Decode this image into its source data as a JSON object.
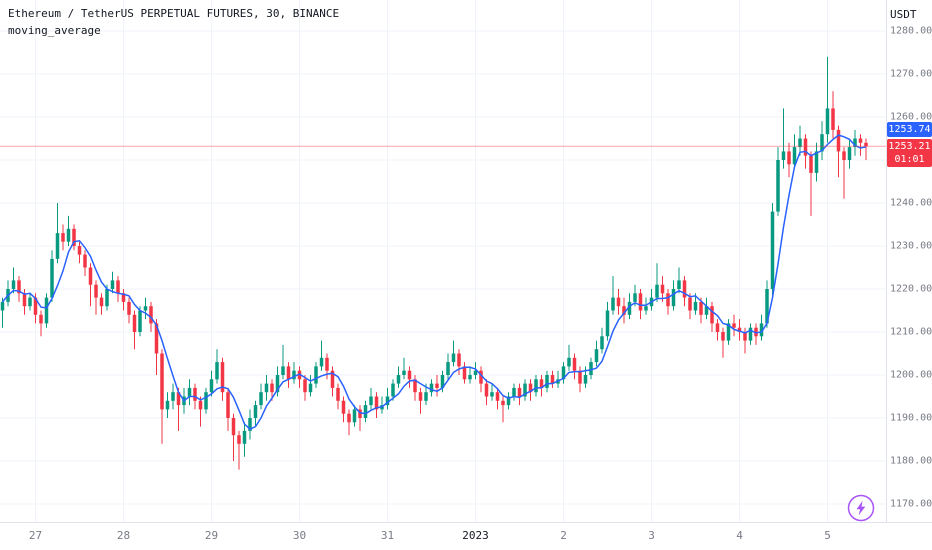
{
  "header": {
    "symbol_title": "Ethereum / TetherUS PERPETUAL FUTURES, 30, BINANCE",
    "indicator_label": "moving_average"
  },
  "price_axis": {
    "currency_label": "USDT",
    "ticks": [
      {
        "value": 1280,
        "label": "1280.00"
      },
      {
        "value": 1270,
        "label": "1270.00"
      },
      {
        "value": 1260,
        "label": "1260.00"
      },
      {
        "value": 1250,
        "label": "1250.00"
      },
      {
        "value": 1240,
        "label": "1240.00"
      },
      {
        "value": 1230,
        "label": "1230.00"
      },
      {
        "value": 1220,
        "label": "1220.00"
      },
      {
        "value": 1210,
        "label": "1210.00"
      },
      {
        "value": 1200,
        "label": "1200.00"
      },
      {
        "value": 1190,
        "label": "1190.00"
      },
      {
        "value": 1180,
        "label": "1180.00"
      },
      {
        "value": 1170,
        "label": "1170.00"
      }
    ]
  },
  "time_axis": {
    "ticks": [
      {
        "label": "27",
        "candle_index": 6
      },
      {
        "label": "28",
        "candle_index": 22
      },
      {
        "label": "29",
        "candle_index": 38
      },
      {
        "label": "30",
        "candle_index": 54
      },
      {
        "label": "31",
        "candle_index": 70
      },
      {
        "label": "2023",
        "candle_index": 86,
        "major": true
      },
      {
        "label": "2",
        "candle_index": 102
      },
      {
        "label": "3",
        "candle_index": 118
      },
      {
        "label": "4",
        "candle_index": 134
      },
      {
        "label": "5",
        "candle_index": 150
      }
    ]
  },
  "price_labels": {
    "ma_value": "1253.74",
    "last_value": "1253.21",
    "countdown": "01:01"
  },
  "colors": {
    "up": "#089981",
    "down": "#f23645",
    "ma_line": "#2962ff",
    "ma_badge": "#2962ff",
    "last_badge": "#f23645",
    "grid": "#f0f3fa",
    "axis_text": "#787b86",
    "title_text": "#131722",
    "boost": "#a855f7"
  },
  "chart_data": {
    "type": "candlestick",
    "title": "Ethereum / TetherUS PERPETUAL FUTURES, 30, BINANCE",
    "exchange": "BINANCE",
    "interval": "30",
    "overlay": "moving_average",
    "ylim": [
      1167,
      1283
    ],
    "x_labels": [
      "27",
      "28",
      "29",
      "30",
      "31",
      "2023",
      "2",
      "3",
      "4",
      "5"
    ],
    "last_price": 1253.21,
    "ma_value": 1253.74,
    "candles": [
      [
        1215,
        1218,
        1211,
        1217
      ],
      [
        1217,
        1222,
        1216,
        1220
      ],
      [
        1220,
        1225,
        1219,
        1222
      ],
      [
        1222,
        1223,
        1217,
        1219
      ],
      [
        1219,
        1220,
        1214,
        1216
      ],
      [
        1216,
        1219,
        1215,
        1218
      ],
      [
        1218,
        1219,
        1212,
        1214
      ],
      [
        1214,
        1215,
        1209,
        1212
      ],
      [
        1212,
        1219,
        1211,
        1218
      ],
      [
        1218,
        1229,
        1217,
        1227
      ],
      [
        1227,
        1240,
        1226,
        1233
      ],
      [
        1233,
        1235,
        1229,
        1231
      ],
      [
        1231,
        1237,
        1230,
        1234
      ],
      [
        1234,
        1235,
        1229,
        1230
      ],
      [
        1230,
        1231,
        1226,
        1228
      ],
      [
        1228,
        1229,
        1223,
        1225
      ],
      [
        1225,
        1226,
        1216,
        1221
      ],
      [
        1221,
        1222,
        1214,
        1218
      ],
      [
        1218,
        1219,
        1214,
        1216
      ],
      [
        1216,
        1221,
        1215,
        1220
      ],
      [
        1220,
        1224,
        1219,
        1222
      ],
      [
        1222,
        1223,
        1217,
        1219
      ],
      [
        1219,
        1220,
        1215,
        1217
      ],
      [
        1217,
        1218,
        1212,
        1214
      ],
      [
        1214,
        1215,
        1206,
        1210
      ],
      [
        1210,
        1216,
        1209,
        1215
      ],
      [
        1215,
        1218,
        1213,
        1216
      ],
      [
        1216,
        1217,
        1210,
        1212
      ],
      [
        1212,
        1213,
        1200,
        1205
      ],
      [
        1205,
        1206,
        1184,
        1192
      ],
      [
        1192,
        1196,
        1190,
        1194
      ],
      [
        1194,
        1198,
        1192,
        1196
      ],
      [
        1196,
        1197,
        1187,
        1193
      ],
      [
        1193,
        1197,
        1191,
        1195
      ],
      [
        1195,
        1199,
        1193,
        1197
      ],
      [
        1197,
        1198,
        1192,
        1194
      ],
      [
        1194,
        1195,
        1188,
        1192
      ],
      [
        1192,
        1197,
        1191,
        1196
      ],
      [
        1196,
        1201,
        1195,
        1199
      ],
      [
        1199,
        1206,
        1198,
        1203
      ],
      [
        1203,
        1204,
        1194,
        1196
      ],
      [
        1196,
        1197,
        1187,
        1190
      ],
      [
        1190,
        1191,
        1180,
        1186
      ],
      [
        1186,
        1187,
        1178,
        1184
      ],
      [
        1184,
        1189,
        1181,
        1187
      ],
      [
        1187,
        1192,
        1185,
        1190
      ],
      [
        1190,
        1194,
        1188,
        1193
      ],
      [
        1193,
        1198,
        1192,
        1196
      ],
      [
        1196,
        1200,
        1194,
        1198
      ],
      [
        1198,
        1199,
        1194,
        1196
      ],
      [
        1196,
        1202,
        1195,
        1200
      ],
      [
        1200,
        1207,
        1199,
        1202
      ],
      [
        1202,
        1203,
        1197,
        1199
      ],
      [
        1199,
        1203,
        1198,
        1201
      ],
      [
        1201,
        1202,
        1197,
        1199
      ],
      [
        1199,
        1200,
        1194,
        1196
      ],
      [
        1196,
        1200,
        1195,
        1198
      ],
      [
        1198,
        1203,
        1197,
        1202
      ],
      [
        1202,
        1208,
        1201,
        1204
      ],
      [
        1204,
        1205,
        1199,
        1201
      ],
      [
        1201,
        1202,
        1195,
        1197
      ],
      [
        1197,
        1198,
        1192,
        1194
      ],
      [
        1194,
        1195,
        1189,
        1191
      ],
      [
        1191,
        1192,
        1186,
        1189
      ],
      [
        1189,
        1193,
        1188,
        1192
      ],
      [
        1192,
        1193,
        1187,
        1190
      ],
      [
        1190,
        1194,
        1189,
        1193
      ],
      [
        1193,
        1197,
        1192,
        1195
      ],
      [
        1195,
        1196,
        1190,
        1192
      ],
      [
        1192,
        1195,
        1191,
        1193
      ],
      [
        1193,
        1197,
        1192,
        1195
      ],
      [
        1195,
        1199,
        1194,
        1198
      ],
      [
        1198,
        1202,
        1197,
        1200
      ],
      [
        1200,
        1204,
        1199,
        1201
      ],
      [
        1201,
        1202,
        1197,
        1199
      ],
      [
        1199,
        1200,
        1194,
        1196
      ],
      [
        1196,
        1197,
        1191,
        1194
      ],
      [
        1194,
        1198,
        1193,
        1196
      ],
      [
        1196,
        1199,
        1195,
        1198
      ],
      [
        1198,
        1200,
        1195,
        1197
      ],
      [
        1197,
        1201,
        1196,
        1200
      ],
      [
        1200,
        1205,
        1199,
        1203
      ],
      [
        1203,
        1208,
        1202,
        1205
      ],
      [
        1205,
        1206,
        1200,
        1202
      ],
      [
        1202,
        1203,
        1198,
        1199
      ],
      [
        1199,
        1202,
        1198,
        1200
      ],
      [
        1200,
        1203,
        1199,
        1201
      ],
      [
        1201,
        1202,
        1196,
        1198
      ],
      [
        1198,
        1199,
        1193,
        1195
      ],
      [
        1195,
        1198,
        1194,
        1196
      ],
      [
        1196,
        1197,
        1192,
        1194
      ],
      [
        1194,
        1195,
        1189,
        1193
      ],
      [
        1193,
        1196,
        1192,
        1195
      ],
      [
        1195,
        1198,
        1194,
        1197
      ],
      [
        1197,
        1198,
        1193,
        1195
      ],
      [
        1195,
        1199,
        1194,
        1198
      ],
      [
        1198,
        1199,
        1194,
        1196
      ],
      [
        1196,
        1200,
        1195,
        1199
      ],
      [
        1199,
        1200,
        1195,
        1197
      ],
      [
        1197,
        1201,
        1196,
        1200
      ],
      [
        1200,
        1201,
        1197,
        1198
      ],
      [
        1198,
        1201,
        1197,
        1199
      ],
      [
        1199,
        1203,
        1198,
        1202
      ],
      [
        1202,
        1207,
        1201,
        1204
      ],
      [
        1204,
        1205,
        1199,
        1201
      ],
      [
        1201,
        1202,
        1196,
        1198
      ],
      [
        1198,
        1202,
        1197,
        1200
      ],
      [
        1200,
        1204,
        1199,
        1203
      ],
      [
        1203,
        1208,
        1202,
        1206
      ],
      [
        1206,
        1211,
        1205,
        1209
      ],
      [
        1209,
        1217,
        1208,
        1215
      ],
      [
        1215,
        1223,
        1214,
        1218
      ],
      [
        1218,
        1220,
        1214,
        1216
      ],
      [
        1216,
        1218,
        1212,
        1214
      ],
      [
        1214,
        1219,
        1213,
        1217
      ],
      [
        1217,
        1221,
        1216,
        1219
      ],
      [
        1219,
        1220,
        1213,
        1215
      ],
      [
        1215,
        1218,
        1214,
        1216
      ],
      [
        1216,
        1220,
        1215,
        1218
      ],
      [
        1218,
        1226,
        1217,
        1221
      ],
      [
        1221,
        1223,
        1217,
        1219
      ],
      [
        1219,
        1220,
        1214,
        1216
      ],
      [
        1216,
        1222,
        1215,
        1220
      ],
      [
        1220,
        1225,
        1219,
        1222
      ],
      [
        1222,
        1223,
        1216,
        1218
      ],
      [
        1218,
        1219,
        1213,
        1215
      ],
      [
        1215,
        1219,
        1214,
        1217
      ],
      [
        1217,
        1218,
        1212,
        1214
      ],
      [
        1214,
        1218,
        1213,
        1216
      ],
      [
        1216,
        1217,
        1210,
        1212
      ],
      [
        1212,
        1213,
        1208,
        1210
      ],
      [
        1210,
        1211,
        1204,
        1208
      ],
      [
        1208,
        1213,
        1207,
        1212
      ],
      [
        1212,
        1214,
        1209,
        1211
      ],
      [
        1211,
        1213,
        1208,
        1210
      ],
      [
        1210,
        1211,
        1205,
        1208
      ],
      [
        1208,
        1212,
        1207,
        1211
      ],
      [
        1211,
        1212,
        1207,
        1209
      ],
      [
        1209,
        1214,
        1208,
        1212
      ],
      [
        1212,
        1222,
        1211,
        1220
      ],
      [
        1220,
        1240,
        1218,
        1238
      ],
      [
        1238,
        1253,
        1237,
        1250
      ],
      [
        1250,
        1262,
        1248,
        1252
      ],
      [
        1252,
        1254,
        1246,
        1249
      ],
      [
        1249,
        1256,
        1248,
        1253
      ],
      [
        1253,
        1258,
        1251,
        1255
      ],
      [
        1255,
        1256,
        1248,
        1251
      ],
      [
        1251,
        1252,
        1237,
        1247
      ],
      [
        1247,
        1254,
        1245,
        1252
      ],
      [
        1252,
        1259,
        1250,
        1256
      ],
      [
        1256,
        1274,
        1254,
        1262
      ],
      [
        1262,
        1266,
        1255,
        1257
      ],
      [
        1257,
        1258,
        1246,
        1252
      ],
      [
        1252,
        1253,
        1241,
        1250
      ],
      [
        1250,
        1255,
        1248,
        1253
      ],
      [
        1253,
        1257,
        1251,
        1255
      ],
      [
        1255,
        1256,
        1251,
        1254
      ],
      [
        1254,
        1255,
        1250,
        1253.21
      ]
    ]
  }
}
